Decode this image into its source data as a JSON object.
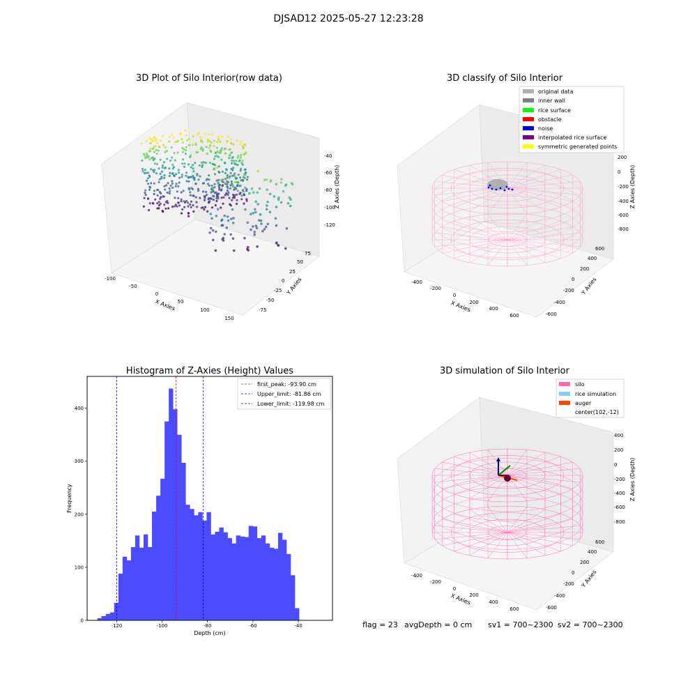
{
  "figure": {
    "suptitle": "DJSAD12 2025-05-27 12:23:28"
  },
  "status": {
    "flag": "flag = 23",
    "avg_depth": "avgDepth = 0 cm",
    "sv1": "sv1 = 700~2300",
    "sv2": "sv2 = 700~2300"
  },
  "chart_data": [
    {
      "type": "scatter",
      "subtype": "3d",
      "title": "3D Plot of Silo Interior(row data)",
      "xlabel": "X Axies",
      "ylabel": "Y Axies",
      "zlabel": "Z Axies (Depth)",
      "xticks": [
        -100,
        -50,
        0,
        50,
        100,
        150
      ],
      "yticks": [
        -75,
        -50,
        -25,
        0,
        25,
        50,
        75
      ],
      "zticks": [
        -40,
        -60,
        -80,
        -100,
        -120
      ],
      "colormap": "viridis",
      "grid": true
    },
    {
      "type": "scatter",
      "subtype": "3d",
      "title": "3D classify of Silo Interior",
      "zlabel": "Z Axies (Depth)",
      "xlabel": "X Axies",
      "ylabel": "Y Axies",
      "xticks": [
        -400,
        -200,
        0,
        200,
        400,
        600
      ],
      "yticks": [
        -600,
        -400,
        -200,
        0,
        200,
        400,
        600
      ],
      "zticks": [
        200,
        0,
        -200,
        -400,
        -600,
        -800
      ],
      "legend_position": "top-right",
      "legend": [
        {
          "label": "original data",
          "color": "#b0b0b0"
        },
        {
          "label": "inner wall",
          "color": "#808080"
        },
        {
          "label": "rice surface",
          "color": "#00ff00"
        },
        {
          "label": "obstacle",
          "color": "#ff0000"
        },
        {
          "label": "noise",
          "color": "#0000ff"
        },
        {
          "label": "interpolated rice surface",
          "color": "#800080"
        },
        {
          "label": "symmetric generated points",
          "color": "#ffff00"
        }
      ],
      "wireframe_color": "#ff9ecb",
      "grid": true
    },
    {
      "type": "bar",
      "subtype": "histogram",
      "title": "Histogram of Z-Axies (Height) Values",
      "xlabel": "Depth (cm)",
      "ylabel": "Frequency",
      "xlim": [
        -133,
        -25
      ],
      "ylim": [
        0,
        460
      ],
      "xticks": [
        -120,
        -100,
        -80,
        -60,
        -40
      ],
      "yticks": [
        0,
        100,
        200,
        300,
        400
      ],
      "bin_start": -128.5,
      "bin_width": 1.85,
      "counts": [
        4,
        8,
        12,
        15,
        33,
        88,
        120,
        113,
        138,
        160,
        137,
        162,
        138,
        205,
        235,
        267,
        375,
        437,
        398,
        350,
        297,
        218,
        210,
        198,
        204,
        188,
        204,
        162,
        167,
        175,
        166,
        155,
        145,
        160,
        158,
        157,
        178,
        177,
        155,
        160,
        145,
        137,
        135,
        165,
        152,
        125,
        85,
        23
      ],
      "bar_color": "#4b4bff",
      "vlines": [
        {
          "label": "first_peak: -93.90 cm",
          "x": -93.9,
          "color": "#ff0000"
        },
        {
          "label": "Upper_limit: -81.86 cm",
          "x": -81.86,
          "color": "#0000ff"
        },
        {
          "label": "Lower_limit: -119.98 cm",
          "x": -119.98,
          "color": "#0000ff"
        }
      ],
      "legend_position": "top-right"
    },
    {
      "type": "scatter",
      "subtype": "3d",
      "title": "3D simulation of Silo Interior",
      "zlabel": "Z Axies (Depth)",
      "xlabel": "X Axies",
      "ylabel": "Y Axies",
      "xticks": [
        -400,
        -200,
        0,
        200,
        400,
        600
      ],
      "yticks": [
        -600,
        -400,
        -200,
        0,
        200,
        400,
        600
      ],
      "zticks": [
        400,
        200,
        0,
        -200,
        -400,
        -600,
        -800
      ],
      "legend_position": "top-right",
      "legend": [
        {
          "label": "silo",
          "color": "#ff69b4"
        },
        {
          "label": "rice simulation",
          "color": "#87ceeb"
        },
        {
          "label": "auger",
          "color": "#ff4500"
        },
        {
          "label": "center(102,-12)",
          "color": ""
        }
      ],
      "wireframe_color": "#ff69b4",
      "grid": true
    }
  ]
}
